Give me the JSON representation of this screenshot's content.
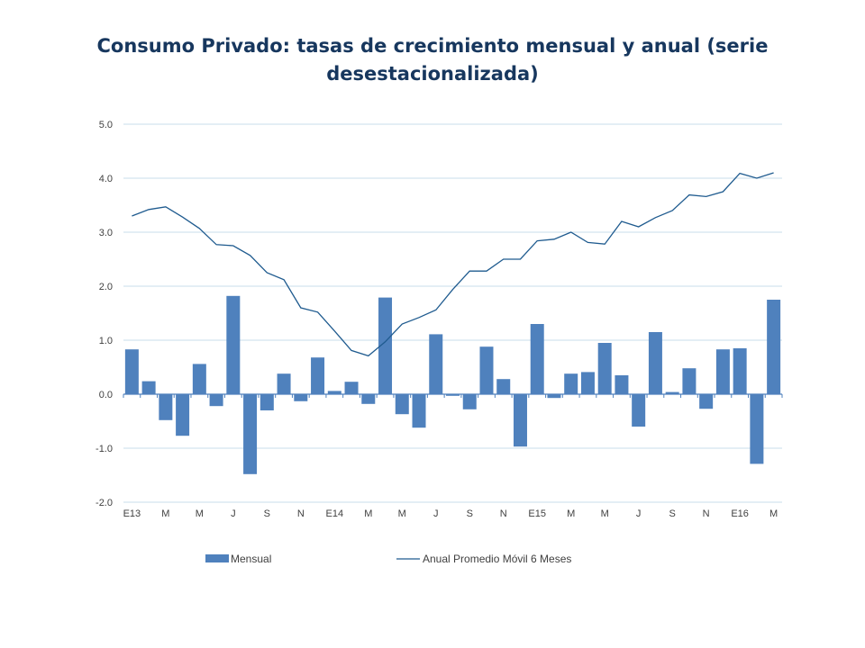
{
  "chart_data": {
    "type": "bar",
    "title_line1": "Consumo Privado: tasas de crecimiento mensual y anual (serie",
    "title_line2": "desestacionalizada)",
    "ylim": [
      -2.0,
      5.0
    ],
    "yticks": [
      "5.0",
      "4.0",
      "3.0",
      "2.0",
      "1.0",
      "0.0",
      "-1.0",
      "-2.0"
    ],
    "ytick_values": [
      5,
      4,
      3,
      2,
      1,
      0,
      -1,
      -2
    ],
    "xtick_labels": [
      "E13",
      "M",
      "M",
      "J",
      "S",
      "N",
      "E14",
      "M",
      "M",
      "J",
      "S",
      "N",
      "E15",
      "M",
      "M",
      "J",
      "S",
      "N",
      "E16",
      "M"
    ],
    "xtick_indices": [
      0,
      2,
      4,
      6,
      8,
      10,
      12,
      14,
      16,
      18,
      20,
      22,
      24,
      26,
      28,
      30,
      32,
      34,
      36,
      38
    ],
    "grid": true,
    "legend_position": "bottom",
    "series": [
      {
        "name": "Mensual",
        "type": "bar",
        "color": "#4f81bd",
        "values": [
          0.83,
          0.24,
          -0.48,
          -0.77,
          0.56,
          -0.22,
          1.82,
          -1.48,
          -0.3,
          0.38,
          -0.13,
          0.68,
          0.06,
          0.23,
          -0.18,
          1.79,
          -0.37,
          -0.62,
          1.11,
          -0.03,
          -0.28,
          0.88,
          0.28,
          -0.97,
          1.3,
          -0.07,
          0.38,
          0.41,
          0.95,
          0.35,
          -0.6,
          1.15,
          0.04,
          0.48,
          -0.27,
          0.83,
          0.85,
          -1.29,
          1.75
        ]
      },
      {
        "name": "Anual Promedio Móvil 6 Meses",
        "type": "line",
        "color": "#1f5b8f",
        "values": [
          3.3,
          3.42,
          3.47,
          3.28,
          3.07,
          2.77,
          2.75,
          2.57,
          2.25,
          2.12,
          1.6,
          1.52,
          1.17,
          0.81,
          0.71,
          0.97,
          1.3,
          1.42,
          1.56,
          1.94,
          2.28,
          2.28,
          2.5,
          2.5,
          2.84,
          2.87,
          3.0,
          2.81,
          2.78,
          3.2,
          3.1,
          3.27,
          3.4,
          3.69,
          3.66,
          3.75,
          4.09,
          4.0,
          4.1
        ]
      }
    ]
  }
}
